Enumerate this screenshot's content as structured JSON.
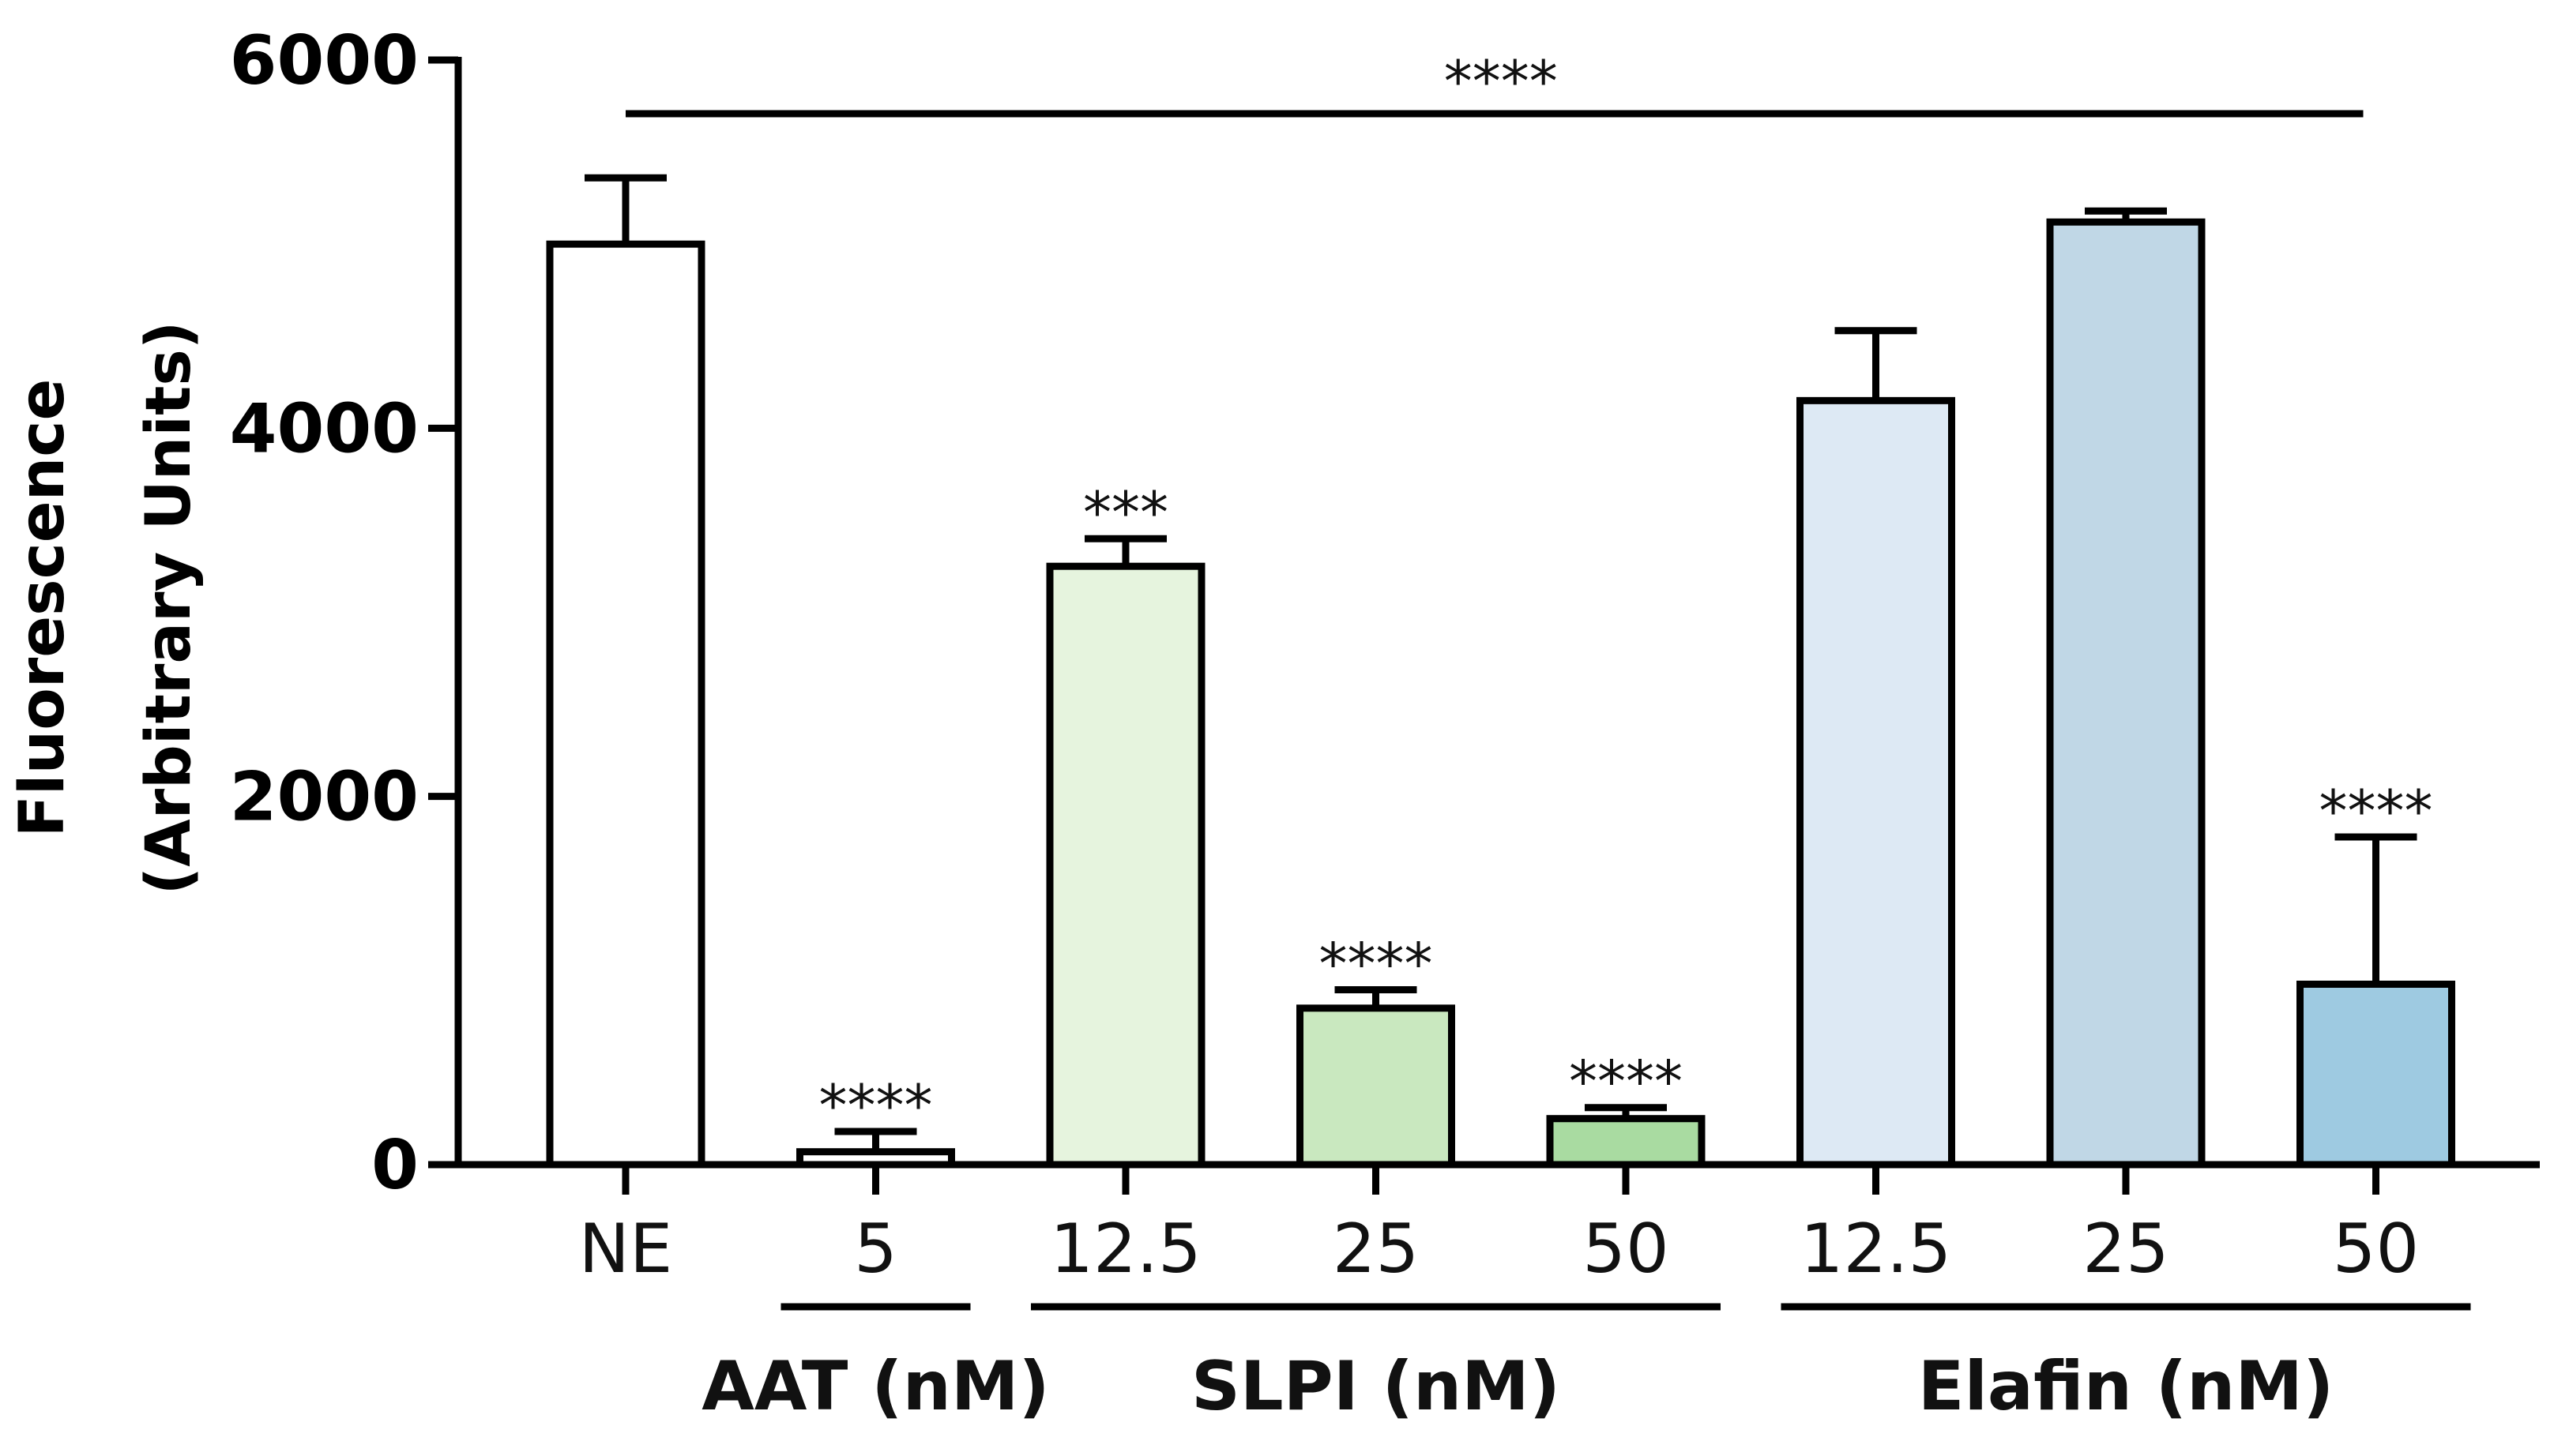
{
  "chart_data": {
    "type": "bar",
    "title": "",
    "ylabel": "Fluorescence",
    "ylabel2": "(Arbitrary  Units)",
    "xlabel": "",
    "ylim": [
      0,
      6000
    ],
    "yticks": [
      0,
      2000,
      4000,
      6000
    ],
    "grid": false,
    "categories": [
      "NE",
      "5",
      "12.5",
      "25",
      "50",
      "12.5",
      "25",
      "50"
    ],
    "values": [
      5000,
      70,
      3250,
      850,
      250,
      4150,
      5120,
      980
    ],
    "errors": [
      360,
      110,
      150,
      100,
      60,
      380,
      60,
      800
    ],
    "colors": [
      "#ffffff",
      "#ffffff",
      "#e6f4de",
      "#c9e8bf",
      "#a9dba1",
      "#dde9f4",
      "#c0d7e6",
      "#9ecae1"
    ],
    "significance": [
      "",
      "****",
      "***",
      "****",
      "****",
      "",
      "",
      "****"
    ],
    "overall_significance": "****",
    "groups": [
      {
        "label": "AAT (nM)",
        "start": 1,
        "end": 1
      },
      {
        "label": "SLPI (nM)",
        "start": 2,
        "end": 4
      },
      {
        "label": "Elafin (nM)",
        "start": 5,
        "end": 7
      }
    ]
  }
}
